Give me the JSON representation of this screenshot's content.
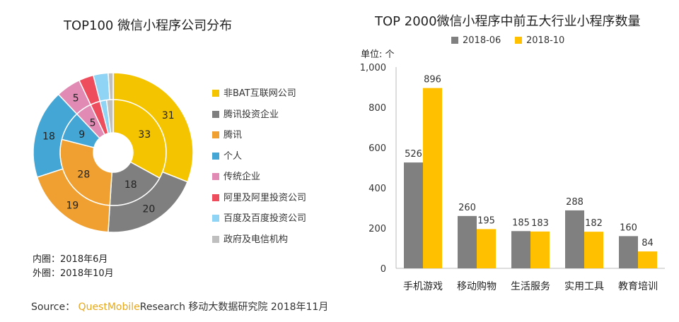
{
  "chart_data": [
    {
      "type": "pie",
      "title": "TOP100 微信小程序公司分布",
      "categories": [
        "非BAT互联网公司",
        "腾讯投资企业",
        "腾讯",
        "个人",
        "传统企业",
        "阿里及阿里投资公司",
        "百度及百度投资公司",
        "政府及电信机构"
      ],
      "colors": [
        "#f5c400",
        "#7f7f7f",
        "#f0a030",
        "#44a6d4",
        "#e08ab4",
        "#ee4d5e",
        "#8fd3f5",
        "#bfbfbf"
      ],
      "series": [
        {
          "name": "内圈：2018年6月",
          "values": [
            33,
            18,
            28,
            9,
            5,
            3,
            2,
            2
          ]
        },
        {
          "name": "外圈：2018年10月",
          "values": [
            31,
            20,
            19,
            18,
            5,
            3,
            3,
            1
          ]
        }
      ],
      "inner_label": "内圈：2018年6月",
      "outer_label": "外圈：2018年10月"
    },
    {
      "type": "bar",
      "title": "TOP 2000微信小程序中前五大行业小程序数量",
      "unit_label": "单位: 个",
      "categories": [
        "手机游戏",
        "移动购物",
        "生活服务",
        "实用工具",
        "教育培训"
      ],
      "series": [
        {
          "name": "2018-06",
          "color": "#808080",
          "values": [
            526,
            260,
            185,
            288,
            160
          ]
        },
        {
          "name": "2018-10",
          "color": "#ffc000",
          "values": [
            896,
            195,
            183,
            182,
            84
          ]
        }
      ],
      "ylim": [
        0,
        1000
      ],
      "yticks": [
        0,
        200,
        400,
        600,
        800,
        1000
      ],
      "ytick_labels": [
        "0",
        "200",
        "400",
        "600",
        "800",
        "1,000"
      ]
    }
  ],
  "source": {
    "prefix": "Source：",
    "brand": "QuestMobile",
    "text": "Research 移动大数据研究院 2018年11月"
  }
}
